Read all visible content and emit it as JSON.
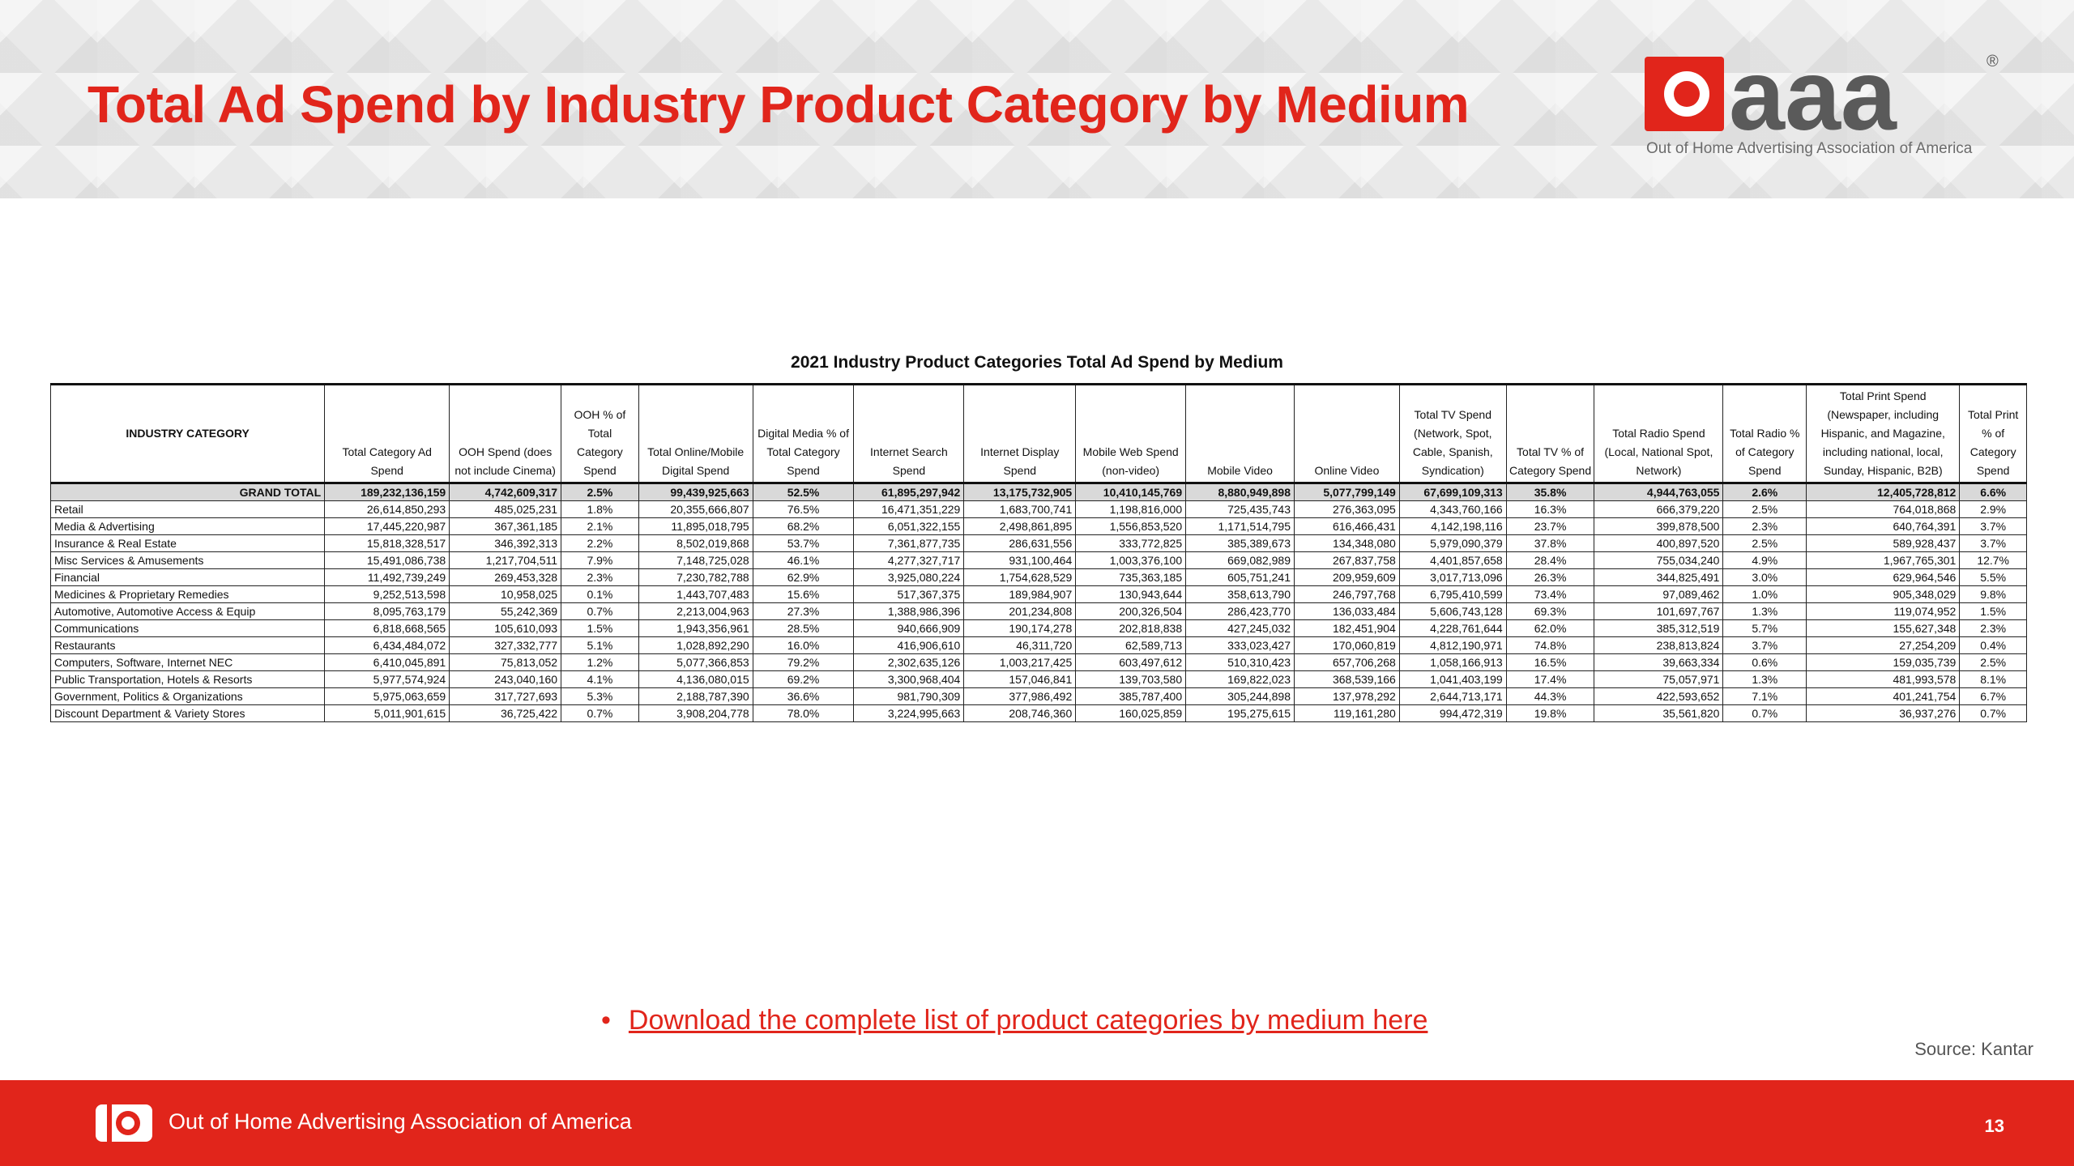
{
  "slide": {
    "title": "Total Ad Spend by Industry Product Category by Medium",
    "logo_text": "aaa",
    "tagline": "Out of Home Advertising Association of America",
    "registered_mark": "®"
  },
  "table": {
    "caption": "2021 Industry Product Categories Total Ad Spend by Medium",
    "headers": [
      "INDUSTRY CATEGORY",
      "Total Category Ad Spend",
      "OOH Spend (does not include Cinema)",
      "OOH % of Total Category Spend",
      "Total Online/Mobile Digital Spend",
      "Digital Media % of Total Category Spend",
      "Internet Search Spend",
      "Internet Display Spend",
      "Mobile Web Spend (non-video)",
      "Mobile Video",
      "Online Video",
      "Total TV Spend (Network, Spot, Cable, Spanish, Syndication)",
      "Total TV % of Category Spend",
      "Total Radio Spend (Local, National Spot, Network)",
      "Total Radio % of Category Spend",
      "Total Print Spend (Newspaper, including Hispanic, and Magazine, including national, local, Sunday, Hispanic, B2B)",
      "Total Print % of Category Spend"
    ],
    "rows": [
      [
        "GRAND TOTAL",
        "189,232,136,159",
        "4,742,609,317",
        "2.5%",
        "99,439,925,663",
        "52.5%",
        "61,895,297,942",
        "13,175,732,905",
        "10,410,145,769",
        "8,880,949,898",
        "5,077,799,149",
        "67,699,109,313",
        "35.8%",
        "4,944,763,055",
        "2.6%",
        "12,405,728,812",
        "6.6%"
      ],
      [
        "Retail",
        "26,614,850,293",
        "485,025,231",
        "1.8%",
        "20,355,666,807",
        "76.5%",
        "16,471,351,229",
        "1,683,700,741",
        "1,198,816,000",
        "725,435,743",
        "276,363,095",
        "4,343,760,166",
        "16.3%",
        "666,379,220",
        "2.5%",
        "764,018,868",
        "2.9%"
      ],
      [
        "Media & Advertising",
        "17,445,220,987",
        "367,361,185",
        "2.1%",
        "11,895,018,795",
        "68.2%",
        "6,051,322,155",
        "2,498,861,895",
        "1,556,853,520",
        "1,171,514,795",
        "616,466,431",
        "4,142,198,116",
        "23.7%",
        "399,878,500",
        "2.3%",
        "640,764,391",
        "3.7%"
      ],
      [
        "Insurance & Real Estate",
        "15,818,328,517",
        "346,392,313",
        "2.2%",
        "8,502,019,868",
        "53.7%",
        "7,361,877,735",
        "286,631,556",
        "333,772,825",
        "385,389,673",
        "134,348,080",
        "5,979,090,379",
        "37.8%",
        "400,897,520",
        "2.5%",
        "589,928,437",
        "3.7%"
      ],
      [
        "Misc Services & Amusements",
        "15,491,086,738",
        "1,217,704,511",
        "7.9%",
        "7,148,725,028",
        "46.1%",
        "4,277,327,717",
        "931,100,464",
        "1,003,376,100",
        "669,082,989",
        "267,837,758",
        "4,401,857,658",
        "28.4%",
        "755,034,240",
        "4.9%",
        "1,967,765,301",
        "12.7%"
      ],
      [
        "Financial",
        "11,492,739,249",
        "269,453,328",
        "2.3%",
        "7,230,782,788",
        "62.9%",
        "3,925,080,224",
        "1,754,628,529",
        "735,363,185",
        "605,751,241",
        "209,959,609",
        "3,017,713,096",
        "26.3%",
        "344,825,491",
        "3.0%",
        "629,964,546",
        "5.5%"
      ],
      [
        "Medicines & Proprietary Remedies",
        "9,252,513,598",
        "10,958,025",
        "0.1%",
        "1,443,707,483",
        "15.6%",
        "517,367,375",
        "189,984,907",
        "130,943,644",
        "358,613,790",
        "246,797,768",
        "6,795,410,599",
        "73.4%",
        "97,089,462",
        "1.0%",
        "905,348,029",
        "9.8%"
      ],
      [
        "Automotive, Automotive Access & Equip",
        "8,095,763,179",
        "55,242,369",
        "0.7%",
        "2,213,004,963",
        "27.3%",
        "1,388,986,396",
        "201,234,808",
        "200,326,504",
        "286,423,770",
        "136,033,484",
        "5,606,743,128",
        "69.3%",
        "101,697,767",
        "1.3%",
        "119,074,952",
        "1.5%"
      ],
      [
        "Communications",
        "6,818,668,565",
        "105,610,093",
        "1.5%",
        "1,943,356,961",
        "28.5%",
        "940,666,909",
        "190,174,278",
        "202,818,838",
        "427,245,032",
        "182,451,904",
        "4,228,761,644",
        "62.0%",
        "385,312,519",
        "5.7%",
        "155,627,348",
        "2.3%"
      ],
      [
        "Restaurants",
        "6,434,484,072",
        "327,332,777",
        "5.1%",
        "1,028,892,290",
        "16.0%",
        "416,906,610",
        "46,311,720",
        "62,589,713",
        "333,023,427",
        "170,060,819",
        "4,812,190,971",
        "74.8%",
        "238,813,824",
        "3.7%",
        "27,254,209",
        "0.4%"
      ],
      [
        "Computers, Software, Internet NEC",
        "6,410,045,891",
        "75,813,052",
        "1.2%",
        "5,077,366,853",
        "79.2%",
        "2,302,635,126",
        "1,003,217,425",
        "603,497,612",
        "510,310,423",
        "657,706,268",
        "1,058,166,913",
        "16.5%",
        "39,663,334",
        "0.6%",
        "159,035,739",
        "2.5%"
      ],
      [
        "Public Transportation, Hotels & Resorts",
        "5,977,574,924",
        "243,040,160",
        "4.1%",
        "4,136,080,015",
        "69.2%",
        "3,300,968,404",
        "157,046,841",
        "139,703,580",
        "169,822,023",
        "368,539,166",
        "1,041,403,199",
        "17.4%",
        "75,057,971",
        "1.3%",
        "481,993,578",
        "8.1%"
      ],
      [
        "Government, Politics & Organizations",
        "5,975,063,659",
        "317,727,693",
        "5.3%",
        "2,188,787,390",
        "36.6%",
        "981,790,309",
        "377,986,492",
        "385,787,400",
        "305,244,898",
        "137,978,292",
        "2,644,713,171",
        "44.3%",
        "422,593,652",
        "7.1%",
        "401,241,754",
        "6.7%"
      ],
      [
        "Discount Department & Variety Stores",
        "5,011,901,615",
        "36,725,422",
        "0.7%",
        "3,908,204,778",
        "78.0%",
        "3,224,995,663",
        "208,746,360",
        "160,025,859",
        "195,275,615",
        "119,161,280",
        "994,472,319",
        "19.8%",
        "35,561,820",
        "0.7%",
        "36,937,276",
        "0.7%"
      ]
    ]
  },
  "download": {
    "bullet": "•",
    "link_text": "Download the complete list of product categories by medium here"
  },
  "source": "Source: Kantar",
  "footer": {
    "org_name": "Out of Home Advertising Association of America",
    "page_number": "13"
  },
  "colors": {
    "brand_red": "#e1251b",
    "logo_gray": "#5a5a5a",
    "grand_total_bg": "#d9d9d9"
  }
}
